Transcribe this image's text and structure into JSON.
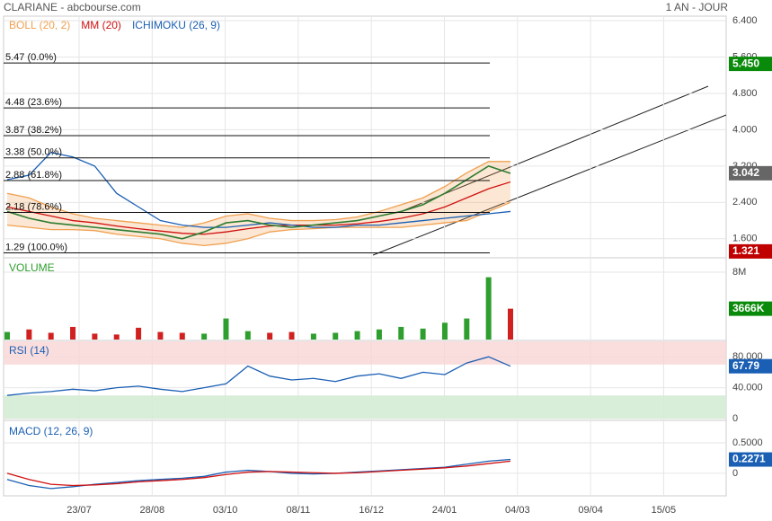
{
  "header": {
    "title": "CLARIANE - abcbourse.com",
    "period": "1 AN - JOUR"
  },
  "chart_data": [
    {
      "type": "stock",
      "ylim": [
        1.2,
        6.5
      ],
      "yticks": [
        {
          "value": 6.4,
          "label": "6.400"
        },
        {
          "value": 5.6,
          "label": "5.600"
        },
        {
          "value": 4.8,
          "label": "4.800"
        },
        {
          "value": 4.0,
          "label": "4.000"
        },
        {
          "value": 3.2,
          "label": "3.200"
        },
        {
          "value": 2.4,
          "label": "2.400"
        },
        {
          "value": 1.6,
          "label": "1.600"
        }
      ],
      "xticks": [
        "23/07",
        "28/08",
        "03/10",
        "08/11",
        "16/12",
        "24/01",
        "04/03",
        "09/04",
        "15/05"
      ],
      "grid": true,
      "prices": [
        2.2,
        2.05,
        1.95,
        1.9,
        1.85,
        1.8,
        1.75,
        1.7,
        1.6,
        1.75,
        1.95,
        2.0,
        1.9,
        1.85,
        1.9,
        1.95,
        2.0,
        2.1,
        2.2,
        2.35,
        2.6,
        2.9,
        3.2,
        3.04
      ],
      "price_color": "#2e7d32",
      "series": [
        {
          "name": "BOLL (20, 2)",
          "color": "#f0a050",
          "upper": [
            2.6,
            2.5,
            2.3,
            2.15,
            2.05,
            2.0,
            1.95,
            1.9,
            1.85,
            1.95,
            2.1,
            2.15,
            2.05,
            2.0,
            2.0,
            2.02,
            2.08,
            2.2,
            2.35,
            2.5,
            2.75,
            3.05,
            3.3,
            3.3
          ],
          "lower": [
            1.9,
            1.85,
            1.8,
            1.8,
            1.78,
            1.7,
            1.65,
            1.6,
            1.5,
            1.45,
            1.5,
            1.6,
            1.75,
            1.8,
            1.82,
            1.85,
            1.85,
            1.85,
            1.85,
            1.9,
            1.95,
            2.0,
            2.2,
            2.4
          ]
        },
        {
          "name": "MM (20)",
          "color": "#d01010",
          "values": [
            2.3,
            2.2,
            2.1,
            2.0,
            1.95,
            1.88,
            1.82,
            1.77,
            1.72,
            1.7,
            1.75,
            1.82,
            1.88,
            1.9,
            1.9,
            1.9,
            1.93,
            1.98,
            2.05,
            2.15,
            2.3,
            2.5,
            2.7,
            2.85
          ]
        },
        {
          "name": "ICHIMOKU (26, 9)",
          "color": "#1a5fb4",
          "values": [
            2.9,
            3.0,
            3.5,
            3.4,
            3.2,
            2.6,
            2.3,
            2.0,
            1.9,
            1.85,
            1.85,
            1.9,
            1.95,
            1.9,
            1.85,
            1.85,
            1.9,
            1.9,
            1.95,
            2.0,
            2.05,
            2.1,
            2.15,
            2.2
          ]
        }
      ],
      "fib_levels": [
        {
          "value": 5.47,
          "label": "5.47  (0.0%)"
        },
        {
          "value": 4.48,
          "label": "4.48  (23.6%)"
        },
        {
          "value": 3.87,
          "label": "3.87  (38.2%)"
        },
        {
          "value": 3.38,
          "label": "3.38  (50.0%)"
        },
        {
          "value": 2.88,
          "label": "2.88  (61.8%)"
        },
        {
          "value": 2.18,
          "label": "2.18  (78.6%)"
        },
        {
          "value": 1.29,
          "label": "1.29  (100.0%)"
        }
      ],
      "badges": [
        {
          "value": 5.45,
          "label": "5.450",
          "color": "#0a8a0a"
        },
        {
          "value": 3.042,
          "label": "3.042",
          "color": "#666666"
        },
        {
          "value": 1.321,
          "label": "1.321",
          "color": "#c00000"
        }
      ]
    },
    {
      "type": "bar",
      "ylim": [
        0,
        9600000
      ],
      "yticks": [
        {
          "value": 8000000,
          "label": "8M"
        }
      ],
      "series": [
        {
          "name": "VOLUME",
          "color": "#2e9e2e",
          "down_color": "#d02020",
          "values": [
            900000,
            1200000,
            800000,
            1500000,
            700000,
            600000,
            1400000,
            900000,
            800000,
            700000,
            2500000,
            1000000,
            800000,
            900000,
            700000,
            800000,
            1000000,
            1200000,
            1500000,
            1300000,
            2000000,
            2500000,
            7400000,
            3666000
          ]
        }
      ],
      "badges": [
        {
          "value": 3666000,
          "label": "3666K",
          "color": "#0a8a0a"
        }
      ]
    },
    {
      "type": "line",
      "ylim": [
        0,
        100
      ],
      "yticks": [
        {
          "value": 80,
          "label": "80.000"
        },
        {
          "value": 40,
          "label": "40.000"
        },
        0
      ],
      "overbought": 70,
      "oversold": 30,
      "series": [
        {
          "name": "RSI (14)",
          "color": "#1a5fb4",
          "values": [
            30,
            33,
            35,
            38,
            36,
            40,
            42,
            38,
            35,
            40,
            45,
            68,
            55,
            50,
            52,
            48,
            55,
            58,
            52,
            60,
            57,
            72,
            80,
            67.79
          ]
        }
      ],
      "badges": [
        {
          "value": 67.79,
          "label": "67.79",
          "color": "#1a5fb4"
        }
      ]
    },
    {
      "type": "line",
      "ylim": [
        -0.37,
        0.84
      ],
      "yticks": [
        {
          "value": 0.5,
          "label": "0.5000"
        },
        0
      ],
      "series": [
        {
          "name": "MACD (12, 26, 9)",
          "color": "#1a5fb4",
          "values": [
            -0.1,
            -0.2,
            -0.25,
            -0.22,
            -0.18,
            -0.15,
            -0.12,
            -0.1,
            -0.08,
            -0.05,
            0.02,
            0.05,
            0.03,
            0.0,
            -0.01,
            0.0,
            0.02,
            0.04,
            0.06,
            0.08,
            0.1,
            0.15,
            0.2,
            0.2271
          ]
        },
        {
          "color": "#d01010",
          "values": [
            0,
            -0.1,
            -0.18,
            -0.2,
            -0.19,
            -0.17,
            -0.14,
            -0.12,
            -0.1,
            -0.07,
            -0.02,
            0.02,
            0.03,
            0.02,
            0.01,
            0.0,
            0.01,
            0.03,
            0.05,
            0.07,
            0.09,
            0.12,
            0.16,
            0.2
          ]
        }
      ],
      "badges": [
        {
          "value": 0.2271,
          "label": "0.2271",
          "color": "#1a5fb4"
        }
      ]
    }
  ]
}
